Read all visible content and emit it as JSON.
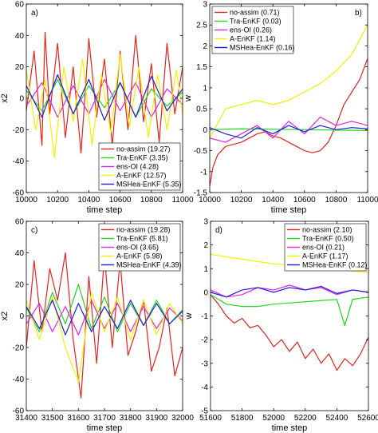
{
  "chart_data": [
    {
      "type": "line",
      "panel_label": "a)",
      "xlabel": "time step",
      "ylabel": "x2",
      "xlim": [
        10000,
        11000
      ],
      "ylim": [
        -60,
        60
      ],
      "xticks": [
        10000,
        10200,
        10400,
        10600,
        10800,
        11000
      ],
      "yticks": [
        -60,
        -40,
        -20,
        0,
        20,
        40,
        60
      ],
      "legend_position": "bottom-right",
      "series": [
        {
          "name": "no-assim (19.27)",
          "color": "#e8231c",
          "x": [
            10000,
            10050,
            10100,
            10120,
            10150,
            10200,
            10250,
            10300,
            10350,
            10400,
            10450,
            10500,
            10550,
            10600,
            10650,
            10700,
            10750,
            10800,
            10850,
            10900,
            10950,
            11000
          ],
          "y": [
            -8,
            30,
            -30,
            42,
            -10,
            35,
            -25,
            20,
            -35,
            38,
            -12,
            25,
            -30,
            30,
            -20,
            40,
            -15,
            22,
            -28,
            35,
            -10,
            20
          ]
        },
        {
          "name": "Tra-EnKF (3.35)",
          "color": "#1fd81f",
          "x": [
            10000,
            10100,
            10200,
            10300,
            10400,
            10500,
            10600,
            10700,
            10800,
            10900,
            11000
          ],
          "y": [
            5,
            -8,
            12,
            -10,
            8,
            -6,
            10,
            -12,
            6,
            -5,
            4
          ]
        },
        {
          "name": "ens-OI (4.28)",
          "color": "#e225e2",
          "x": [
            10000,
            10100,
            10200,
            10300,
            10400,
            10500,
            10600,
            10700,
            10800,
            10900,
            11000
          ],
          "y": [
            -5,
            10,
            -12,
            8,
            -10,
            12,
            -8,
            10,
            -12,
            6,
            -4
          ]
        },
        {
          "name": "A-EnKF (12.57)",
          "color": "#f5f000",
          "x": [
            10000,
            10060,
            10120,
            10180,
            10240,
            10300,
            10360,
            10420,
            10480,
            10540,
            10600,
            10660,
            10720,
            10780,
            10840,
            10900,
            10960,
            11000
          ],
          "y": [
            18,
            -20,
            12,
            -38,
            20,
            -15,
            25,
            -30,
            15,
            -22,
            28,
            -18,
            20,
            -25,
            15,
            -20,
            18,
            -10
          ]
        },
        {
          "name": "MSHea-EnKF (5.35)",
          "color": "#1c1ce0",
          "x": [
            10000,
            10100,
            10200,
            10300,
            10400,
            10500,
            10600,
            10700,
            10800,
            10900,
            11000
          ],
          "y": [
            8,
            -12,
            15,
            -10,
            12,
            -14,
            10,
            -12,
            14,
            -8,
            6
          ]
        }
      ]
    },
    {
      "type": "line",
      "panel_label": "b)",
      "xlabel": "time step",
      "ylabel": "w",
      "xlim": [
        10000,
        11000
      ],
      "ylim": [
        -1.5,
        3
      ],
      "xticks": [
        10000,
        10200,
        10400,
        10600,
        10800,
        11000
      ],
      "yticks": [
        -1.5,
        -1,
        -0.5,
        0,
        0.5,
        1,
        1.5,
        2,
        2.5,
        3
      ],
      "legend_position": "top-left",
      "series": [
        {
          "name": "no-assim (0.71)",
          "color": "#e8231c",
          "x": [
            10000,
            10020,
            10050,
            10100,
            10150,
            10200,
            10250,
            10300,
            10350,
            10400,
            10450,
            10500,
            10550,
            10600,
            10650,
            10700,
            10750,
            10800,
            10850,
            10900,
            10950,
            11000
          ],
          "y": [
            -1.35,
            -0.9,
            -0.6,
            -0.4,
            -0.35,
            -0.3,
            -0.2,
            -0.1,
            -0.05,
            -0.15,
            -0.2,
            -0.3,
            -0.4,
            -0.5,
            -0.55,
            -0.5,
            -0.3,
            0.1,
            0.6,
            0.9,
            1.2,
            1.7
          ]
        },
        {
          "name": "Tra-EnKF (0.03)",
          "color": "#1fd81f",
          "x": [
            10000,
            10200,
            10400,
            10600,
            10800,
            11000
          ],
          "y": [
            0,
            0.02,
            0.01,
            0,
            -0.01,
            -0.02
          ]
        },
        {
          "name": "ens-OI (0.26)",
          "color": "#e225e2",
          "x": [
            10000,
            10100,
            10200,
            10300,
            10400,
            10500,
            10600,
            10700,
            10800,
            10900,
            11000
          ],
          "y": [
            -0.2,
            -0.3,
            -0.1,
            0.1,
            -0.2,
            0.2,
            -0.1,
            0.3,
            0.1,
            0.2,
            0.1
          ]
        },
        {
          "name": "A-EnKF (1.14)",
          "color": "#f5f000",
          "x": [
            10000,
            10100,
            10200,
            10300,
            10400,
            10500,
            10600,
            10700,
            10800,
            10900,
            11000
          ],
          "y": [
            -0.2,
            0.5,
            0.6,
            0.7,
            0.6,
            0.7,
            0.9,
            1.1,
            1.4,
            1.8,
            2.5
          ]
        },
        {
          "name": "MSHea-EnKF (0.16)",
          "color": "#1c1ce0",
          "x": [
            10000,
            10100,
            10200,
            10300,
            10400,
            10500,
            10600,
            10700,
            10800,
            10900,
            11000
          ],
          "y": [
            0.05,
            -0.1,
            -0.2,
            0.05,
            -0.1,
            0.1,
            -0.05,
            0.1,
            0,
            0.05,
            0.02
          ]
        }
      ]
    },
    {
      "type": "line",
      "panel_label": "c)",
      "xlabel": "time step",
      "ylabel": "x2",
      "xlim": [
        31400,
        32000
      ],
      "ylim": [
        -60,
        60
      ],
      "xticks": [
        31400,
        31500,
        31600,
        31700,
        31800,
        31900,
        32000
      ],
      "yticks": [
        -60,
        -40,
        -20,
        0,
        20,
        40,
        60
      ],
      "legend_position": "top-right",
      "series": [
        {
          "name": "no-assim (19.28)",
          "color": "#e8231c",
          "x": [
            31400,
            31430,
            31460,
            31490,
            31520,
            31550,
            31580,
            31610,
            31640,
            31670,
            31700,
            31730,
            31760,
            31790,
            31820,
            31850,
            31880,
            31910,
            31940,
            31970,
            32000
          ],
          "y": [
            -20,
            35,
            -10,
            30,
            10,
            40,
            -15,
            -52,
            25,
            -30,
            38,
            -20,
            35,
            -25,
            -10,
            10,
            -35,
            -20,
            5,
            -38,
            -20
          ]
        },
        {
          "name": "Tra-EnKF (5.81)",
          "color": "#1fd81f",
          "x": [
            31400,
            31450,
            31500,
            31550,
            31600,
            31650,
            31700,
            31750,
            31800,
            31850,
            31900,
            31950,
            32000
          ],
          "y": [
            5,
            -10,
            15,
            -5,
            20,
            -8,
            12,
            -10,
            8,
            -6,
            10,
            -5,
            4
          ]
        },
        {
          "name": "ens-OI (3.65)",
          "color": "#e225e2",
          "x": [
            31400,
            31450,
            31500,
            31550,
            31600,
            31650,
            31700,
            31750,
            31800,
            31850,
            31900,
            31950,
            32000
          ],
          "y": [
            -5,
            8,
            -10,
            6,
            -12,
            10,
            -8,
            8,
            -10,
            6,
            -8,
            5,
            -3
          ]
        },
        {
          "name": "A-EnKF (5.98)",
          "color": "#f5f000",
          "x": [
            31400,
            31450,
            31500,
            31550,
            31600,
            31650,
            31700,
            31750,
            31800,
            31850,
            31900,
            31950,
            32000
          ],
          "y": [
            10,
            -15,
            12,
            -20,
            -42,
            15,
            -10,
            12,
            -15,
            10,
            -12,
            8,
            -5
          ]
        },
        {
          "name": "MSHea-EnKF (4.39)",
          "color": "#1c1ce0",
          "x": [
            31400,
            31450,
            31500,
            31550,
            31600,
            31650,
            31700,
            31750,
            31800,
            31850,
            31900,
            31950,
            32000
          ],
          "y": [
            6,
            -8,
            10,
            -12,
            8,
            -10,
            6,
            -8,
            10,
            -6,
            8,
            -5,
            3
          ]
        }
      ]
    },
    {
      "type": "line",
      "panel_label": "d)",
      "xlabel": "time step",
      "ylabel": "w",
      "xlim": [
        51600,
        52600
      ],
      "ylim": [
        -5,
        3
      ],
      "xticks": [
        51600,
        51800,
        52000,
        52200,
        52400,
        52600
      ],
      "yticks": [
        -5,
        -4,
        -3,
        -2,
        -1,
        0,
        1,
        2,
        3
      ],
      "legend_position": "top-right",
      "series": [
        {
          "name": "no-assim (2.10)",
          "color": "#e8231c",
          "x": [
            51600,
            51650,
            51700,
            51750,
            51800,
            51850,
            51900,
            51950,
            52000,
            52050,
            52100,
            52150,
            52200,
            52250,
            52300,
            52350,
            52400,
            52450,
            52500,
            52550,
            52600
          ],
          "y": [
            -0.1,
            -0.5,
            -1,
            -1.3,
            -1.1,
            -1.5,
            -1.4,
            -1.8,
            -2.3,
            -2.0,
            -2.5,
            -2.1,
            -2.8,
            -2.4,
            -3.0,
            -2.6,
            -3.3,
            -2.8,
            -3.1,
            -2.6,
            -1.9
          ]
        },
        {
          "name": "Tra-EnKF (0.50)",
          "color": "#1fd81f",
          "x": [
            51600,
            51700,
            51800,
            51900,
            52000,
            52100,
            52200,
            52300,
            52400,
            52450,
            52500,
            52600
          ],
          "y": [
            -0.1,
            -0.5,
            -0.6,
            -0.6,
            -0.5,
            -0.45,
            -0.4,
            -0.35,
            -0.3,
            -1.4,
            -0.3,
            -0.2
          ]
        },
        {
          "name": "ens-OI (0.21)",
          "color": "#e225e2",
          "x": [
            51600,
            51700,
            51800,
            51900,
            52000,
            52100,
            52200,
            52300,
            52400,
            52500,
            52600
          ],
          "y": [
            0.1,
            -0.2,
            -0.1,
            0.2,
            0.1,
            0.3,
            0.1,
            0.2,
            -0.1,
            0.1,
            0
          ]
        },
        {
          "name": "A-EnKF (1.17)",
          "color": "#f5f000",
          "x": [
            51600,
            51700,
            51800,
            51900,
            52000,
            52100,
            52200,
            52300,
            52400,
            52500,
            52600
          ],
          "y": [
            1.6,
            1.5,
            1.4,
            1.3,
            1.2,
            1.15,
            1.1,
            1.0,
            0.95,
            0.9,
            0.85
          ]
        },
        {
          "name": "MSHea-EnKF (0.12)",
          "color": "#1c1ce0",
          "x": [
            51600,
            51700,
            51800,
            51900,
            52000,
            52100,
            52200,
            52300,
            52400,
            52500,
            52600
          ],
          "y": [
            0,
            -0.2,
            0.1,
            0.2,
            0,
            0.2,
            0.1,
            0.25,
            -0.05,
            0.1,
            0
          ]
        }
      ]
    }
  ]
}
